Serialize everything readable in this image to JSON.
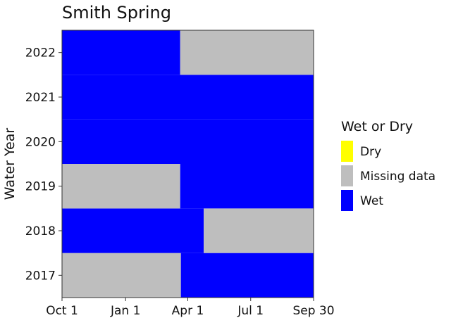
{
  "chart_data": {
    "type": "heatmap",
    "title": "Smith Spring",
    "xlabel": "",
    "ylabel": "Water Year",
    "x_ticks": [
      "Oct 1",
      "Jan 1",
      "Apr 1",
      "Jul 1",
      "Sep 30"
    ],
    "x_tick_days": [
      0,
      92,
      182,
      273,
      364
    ],
    "x_range_days": [
      0,
      364
    ],
    "y_categories": [
      "2017",
      "2018",
      "2019",
      "2020",
      "2021",
      "2022"
    ],
    "legend": {
      "title": "Wet or Dry",
      "position": "right",
      "entries": [
        {
          "label": "Dry",
          "color": "#ffff00"
        },
        {
          "label": "Missing data",
          "color": "#bebebe"
        },
        {
          "label": "Wet",
          "color": "#0000ff"
        }
      ]
    },
    "grid": false,
    "segments": [
      {
        "year": "2017",
        "start_day": 0,
        "end_day": 172,
        "status": "Missing data"
      },
      {
        "year": "2017",
        "start_day": 172,
        "end_day": 364,
        "status": "Wet"
      },
      {
        "year": "2018",
        "start_day": 0,
        "end_day": 205,
        "status": "Wet"
      },
      {
        "year": "2018",
        "start_day": 205,
        "end_day": 364,
        "status": "Missing data"
      },
      {
        "year": "2019",
        "start_day": 0,
        "end_day": 171,
        "status": "Missing data"
      },
      {
        "year": "2019",
        "start_day": 171,
        "end_day": 364,
        "status": "Wet"
      },
      {
        "year": "2020",
        "start_day": 0,
        "end_day": 364,
        "status": "Wet"
      },
      {
        "year": "2021",
        "start_day": 0,
        "end_day": 364,
        "status": "Wet"
      },
      {
        "year": "2022",
        "start_day": 0,
        "end_day": 171,
        "status": "Wet"
      },
      {
        "year": "2022",
        "start_day": 171,
        "end_day": 364,
        "status": "Missing data"
      }
    ]
  }
}
